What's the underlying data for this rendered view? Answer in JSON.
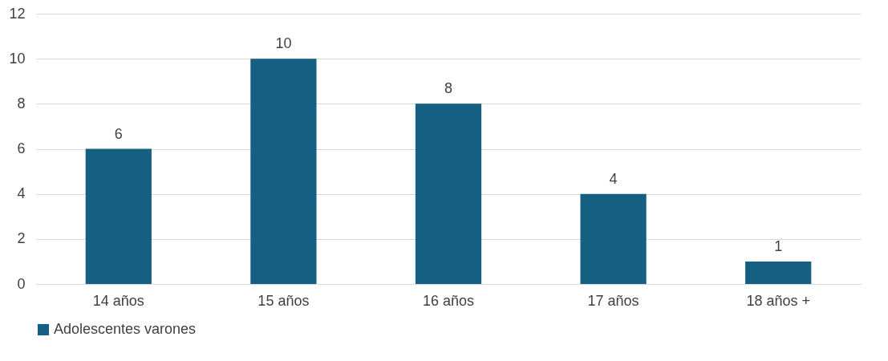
{
  "chart_data": {
    "type": "bar",
    "categories": [
      "14 años",
      "15 años",
      "16 años",
      "17 años",
      "18 años +"
    ],
    "series": [
      {
        "name": "Adolescentes varones",
        "color": "#156082",
        "values": [
          6,
          10,
          8,
          4,
          1
        ]
      }
    ],
    "ylim": [
      0,
      12
    ],
    "yticks": [
      0,
      2,
      4,
      6,
      8,
      10,
      12
    ],
    "grid": "y",
    "legend": "bottom",
    "data_labels": true
  }
}
